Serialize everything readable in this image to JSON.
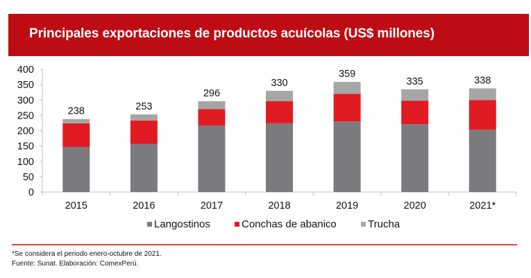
{
  "header": {
    "title": "Principales exportaciones de productos acuícolas (US$ millones)",
    "background": "#BE0C14"
  },
  "chart_data": {
    "type": "bar",
    "stacked": true,
    "title": "Principales exportaciones de productos acuícolas (US$ millones)",
    "xlabel": "",
    "ylabel": "",
    "ylim": [
      0,
      400
    ],
    "yticks": [
      0,
      50,
      100,
      150,
      200,
      250,
      300,
      350,
      400
    ],
    "grid": false,
    "legend_position": "bottom-center",
    "categories": [
      "2015",
      "2016",
      "2017",
      "2018",
      "2019",
      "2020",
      "2021*"
    ],
    "series": [
      {
        "name": "Langostinos",
        "color": "#7B7A7E",
        "values": [
          147,
          157,
          217,
          224,
          230,
          221,
          203
        ]
      },
      {
        "name": "Conchas de abanico",
        "color": "#E11B22",
        "values": [
          77,
          76,
          53,
          72,
          90,
          77,
          97
        ]
      },
      {
        "name": "Trucha",
        "color": "#A6A6A6",
        "values": [
          14,
          20,
          26,
          34,
          39,
          37,
          38
        ]
      }
    ],
    "totals": [
      238,
      253,
      296,
      330,
      359,
      335,
      338
    ],
    "total_labels": [
      "238",
      "253",
      "296",
      "330",
      "359",
      "335",
      "338"
    ]
  },
  "footer": {
    "note": "*Se considera el periodo enero-octubre de 2021.",
    "source": "Fuente: Sunat. Elaboración: ComexPerú."
  }
}
